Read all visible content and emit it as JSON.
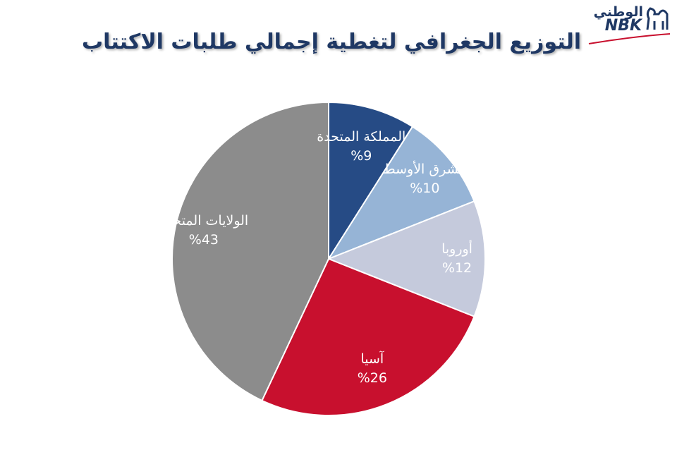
{
  "logo": {
    "arabic": "الوطني",
    "latin": "NBK"
  },
  "chart_data": {
    "type": "pie",
    "title": "التوزيع الجغرافي لتغطية إجمالي طلبات الاكتتاب",
    "categories": [
      "المملكة المتحدة",
      "الشرق الأوسط",
      "أوروبا",
      "آسيا",
      "الولايات المتحدة"
    ],
    "values": [
      9,
      10,
      12,
      26,
      43
    ],
    "value_labels": [
      "%9",
      "%10",
      "%12",
      "%26",
      "%43"
    ],
    "colors": [
      "#264b85",
      "#96b4d6",
      "#c5cadc",
      "#c8102e",
      "#8c8c8c"
    ]
  }
}
